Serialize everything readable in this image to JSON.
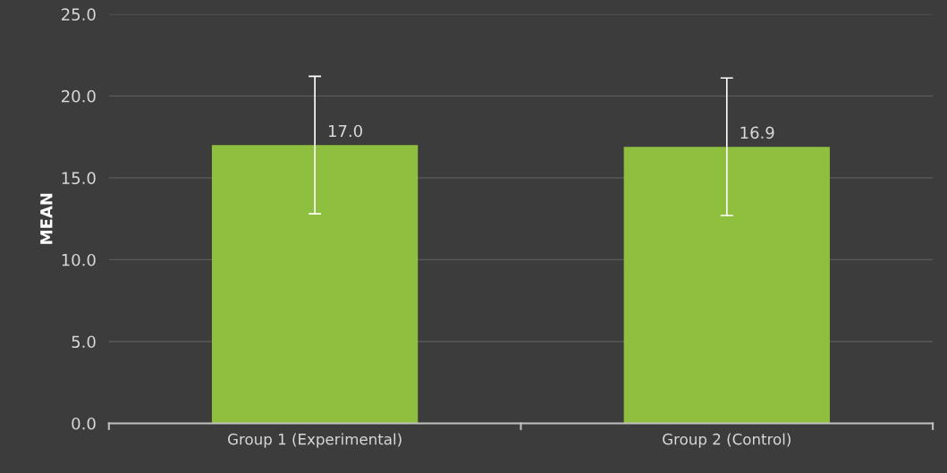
{
  "chart_data": {
    "type": "bar",
    "ylabel": "MEAN",
    "categories": [
      "Group 1 (Experimental)",
      "Group 2 (Control)"
    ],
    "values": [
      17.0,
      16.9
    ],
    "value_labels": [
      "17.0",
      "16.9"
    ],
    "errors": [
      4.2,
      4.2
    ],
    "color": "#8fbf3f",
    "ylim": [
      0,
      25
    ],
    "yticks": [
      {
        "value": 0,
        "label": "0.0"
      },
      {
        "value": 5,
        "label": "5.0"
      },
      {
        "value": 10,
        "label": "10.0"
      },
      {
        "value": 15,
        "label": "15.0"
      },
      {
        "value": 20,
        "label": "20.0"
      },
      {
        "value": 25,
        "label": "25.0"
      }
    ],
    "grid": "y"
  }
}
